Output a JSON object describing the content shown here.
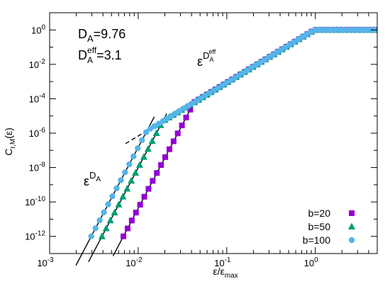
{
  "chart_data": {
    "type": "scatter",
    "x_scale": "log",
    "y_scale": "log",
    "xlim": [
      0.001,
      5
    ],
    "ylim": [
      1e-13,
      10
    ],
    "xlabel": {
      "base": "ε/ε",
      "sub": "max"
    },
    "ylabel": {
      "base": "C",
      "sub": "r,M",
      "suffix": "(ε)"
    },
    "x_ticks": [
      {
        "value": 0.001,
        "mantissa": "10",
        "exponent": "-3"
      },
      {
        "value": 0.01,
        "mantissa": "10",
        "exponent": "-2"
      },
      {
        "value": 0.1,
        "mantissa": "10",
        "exponent": "-1"
      },
      {
        "value": 1,
        "mantissa": "10",
        "exponent": "0"
      }
    ],
    "y_ticks": [
      {
        "value": 1e-12,
        "mantissa": "10",
        "exponent": "-12"
      },
      {
        "value": 1e-10,
        "mantissa": "10",
        "exponent": "-10"
      },
      {
        "value": 1e-08,
        "mantissa": "10",
        "exponent": "-8"
      },
      {
        "value": 1e-06,
        "mantissa": "10",
        "exponent": "-6"
      },
      {
        "value": 0.0001,
        "mantissa": "10",
        "exponent": "-4"
      },
      {
        "value": 0.01,
        "mantissa": "10",
        "exponent": "-2"
      },
      {
        "value": 1,
        "mantissa": "10",
        "exponent": "0"
      }
    ],
    "annotations": {
      "da": {
        "base": "D",
        "sub": "A",
        "rest": "=9.76"
      },
      "da_eff": {
        "base": "D",
        "sub": "A",
        "sup": "eff",
        "rest": "=3.1"
      },
      "eps_da": {
        "base": "ε",
        "sup": "D",
        "supsub": "A"
      },
      "eps_da_eff": {
        "base": "ε",
        "sup": "D",
        "supsub": "A",
        "supsup": "eff"
      }
    },
    "legend_placement": "bottom-right",
    "series": [
      {
        "name": "b=20",
        "marker": "square",
        "color": "#9400d3",
        "x_range": [
          0.00681,
          4.62
        ],
        "count": 61,
        "y_formula": "min(1, 1e-12 * (x/0.00681)^9.76, 1e-4 * (x/0.05)^3.1)"
      },
      {
        "name": "b=50",
        "marker": "triangle",
        "color": "#009e73",
        "x_range": [
          0.0039,
          4.62
        ],
        "count": 66,
        "y_formula": "min(1, 1e-12 * (x/0.0039)^9.76, 1e-4 * (x/0.05)^3.1)"
      },
      {
        "name": "b=100",
        "marker": "circle",
        "color": "#56b4e9",
        "x_range": [
          0.00295,
          4.62
        ],
        "count": 68,
        "y_formula": "min(1, 1e-12 * (x/0.00295)^9.76, 1e-4 * (x/0.05)^3.1)"
      }
    ],
    "fit_lines": [
      {
        "type": "power",
        "exponent": 9.76,
        "style": "solid",
        "color": "#000000",
        "through": [
          0.00295,
          1e-12
        ],
        "x_range": [
          0.00198,
          0.0152
        ]
      },
      {
        "type": "power",
        "exponent": 9.76,
        "style": "solid",
        "color": "#000000",
        "through": [
          0.0039,
          1e-12
        ],
        "x_range": [
          0.00275,
          0.021
        ]
      },
      {
        "type": "power",
        "exponent": 9.76,
        "style": "solid",
        "color": "#000000",
        "through": [
          0.00681,
          1e-12
        ],
        "x_range": [
          0.0052,
          0.045
        ]
      },
      {
        "type": "power",
        "exponent": 3.1,
        "style": "dashed",
        "color": "#000000",
        "through": [
          0.05,
          0.0001
        ],
        "x_range": [
          0.0072,
          0.55
        ]
      }
    ]
  }
}
